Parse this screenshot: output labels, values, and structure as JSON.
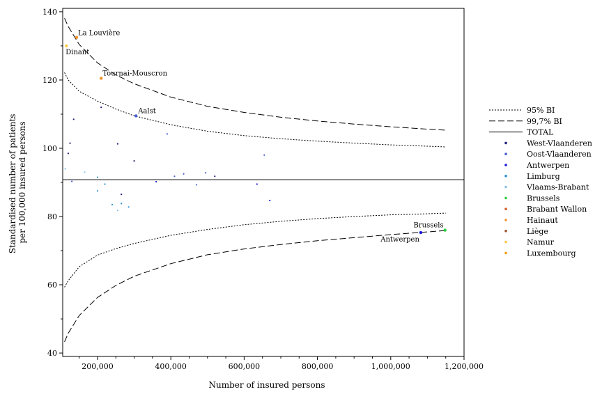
{
  "chart_data": {
    "type": "scatter",
    "title": "",
    "xlabel": "Number of insured persons",
    "ylabel_lines": [
      "Standardised number of patients",
      "per 100,000 insured persons"
    ],
    "xlim": [
      105000,
      1200000
    ],
    "ylim": [
      39,
      141
    ],
    "x_ticks": [
      200000,
      400000,
      600000,
      800000,
      1000000,
      1200000
    ],
    "x_tick_labels": [
      "200,000",
      "400,000",
      "600,000",
      "800,000",
      "1,000,000",
      "1,200,000"
    ],
    "y_ticks": [
      40,
      60,
      80,
      100,
      120,
      140
    ],
    "y_tick_labels": [
      "40",
      "60",
      "80",
      "100",
      "120",
      "140"
    ],
    "grid": false,
    "legend_position": "right",
    "total": 90.8,
    "reference_lines": [
      {
        "name": "95% BI",
        "style": "dotted",
        "upper": [
          [
            110000,
            122.2
          ],
          [
            120000,
            120.0
          ],
          [
            150000,
            116.7
          ],
          [
            200000,
            113.8
          ],
          [
            250000,
            111.5
          ],
          [
            300000,
            109.5
          ],
          [
            400000,
            106.9
          ],
          [
            500000,
            105.0
          ],
          [
            600000,
            103.7
          ],
          [
            700000,
            102.8
          ],
          [
            800000,
            102.1
          ],
          [
            900000,
            101.5
          ],
          [
            1000000,
            101.0
          ],
          [
            1100000,
            100.6
          ],
          [
            1150000,
            100.4
          ]
        ],
        "lower": [
          [
            110000,
            59.3
          ],
          [
            120000,
            61.2
          ],
          [
            150000,
            65.3
          ],
          [
            200000,
            68.7
          ],
          [
            250000,
            70.6
          ],
          [
            300000,
            72.1
          ],
          [
            400000,
            74.5
          ],
          [
            500000,
            76.2
          ],
          [
            600000,
            77.6
          ],
          [
            700000,
            78.6
          ],
          [
            800000,
            79.4
          ],
          [
            900000,
            80.0
          ],
          [
            1000000,
            80.5
          ],
          [
            1100000,
            80.8
          ],
          [
            1150000,
            81.0
          ]
        ]
      },
      {
        "name": "99,7% BI",
        "style": "dashed",
        "upper": [
          [
            110000,
            138.1
          ],
          [
            120000,
            135.7
          ],
          [
            150000,
            130.4
          ],
          [
            200000,
            125.0
          ],
          [
            250000,
            121.5
          ],
          [
            300000,
            118.9
          ],
          [
            400000,
            115.0
          ],
          [
            500000,
            112.3
          ],
          [
            600000,
            110.5
          ],
          [
            700000,
            109.1
          ],
          [
            800000,
            108.0
          ],
          [
            900000,
            107.1
          ],
          [
            1000000,
            106.3
          ],
          [
            1100000,
            105.6
          ],
          [
            1150000,
            105.3
          ]
        ],
        "lower": [
          [
            110000,
            43.3
          ],
          [
            120000,
            45.8
          ],
          [
            150000,
            51.0
          ],
          [
            200000,
            56.3
          ],
          [
            250000,
            59.8
          ],
          [
            300000,
            62.5
          ],
          [
            400000,
            66.2
          ],
          [
            500000,
            68.8
          ],
          [
            600000,
            70.5
          ],
          [
            700000,
            71.8
          ],
          [
            800000,
            72.9
          ],
          [
            900000,
            73.8
          ],
          [
            1000000,
            74.7
          ],
          [
            1100000,
            75.5
          ],
          [
            1150000,
            75.9
          ]
        ]
      }
    ],
    "series": [
      {
        "name": "West-Vlaanderen",
        "color": "#1f1f7a",
        "points": [
          [
            125000,
            101.5
          ],
          [
            135000,
            108.5
          ],
          [
            210000,
            112.0
          ],
          [
            255000,
            101.3
          ],
          [
            300000,
            96.3
          ],
          [
            520000,
            91.8
          ],
          [
            265000,
            86.5
          ],
          [
            120000,
            98.5
          ]
        ]
      },
      {
        "name": "Oost-Vlaanderen",
        "color": "#4a5fd0",
        "points": [
          [
            305000,
            109.5
          ],
          [
            390000,
            104.2
          ],
          [
            655000,
            98.0
          ],
          [
            410000,
            91.8
          ],
          [
            435000,
            92.5
          ],
          [
            495000,
            92.8
          ],
          [
            470000,
            89.3
          ],
          [
            130000,
            90.3
          ]
        ]
      },
      {
        "name": "Antwerpen",
        "color": "#1a1ad6",
        "points": [
          [
            1082000,
            75.3
          ],
          [
            635000,
            89.5
          ],
          [
            360000,
            90.2
          ],
          [
            670000,
            84.7
          ]
        ]
      },
      {
        "name": "Limburg",
        "color": "#2b8fd4",
        "points": [
          [
            200000,
            91.5
          ],
          [
            220000,
            89.5
          ],
          [
            240000,
            83.5
          ],
          [
            265000,
            83.8
          ],
          [
            285000,
            82.8
          ],
          [
            200000,
            87.5
          ]
        ]
      },
      {
        "name": "Vlaams-Brabant",
        "color": "#8ac4ec",
        "points": [
          [
            112000,
            94.0
          ],
          [
            165000,
            93.0
          ],
          [
            255000,
            81.8
          ]
        ]
      },
      {
        "name": "Brussels",
        "color": "#2ecc40",
        "points": [
          [
            1148000,
            76.0
          ]
        ]
      },
      {
        "name": "Brabant Wallon",
        "color": "#d4602a",
        "points": []
      },
      {
        "name": "Hainaut",
        "color": "#f0922c",
        "points": [
          [
            143000,
            132.5
          ],
          [
            210000,
            120.5
          ]
        ]
      },
      {
        "name": "Liège",
        "color": "#a0522d",
        "points": []
      },
      {
        "name": "Namur",
        "color": "#f7c948",
        "points": [
          [
            115000,
            130.0
          ]
        ]
      },
      {
        "name": "Luxembourg",
        "color": "#f39c12",
        "points": []
      }
    ],
    "annotations": [
      {
        "text": "La Louvière",
        "x": 143000,
        "y": 132.5,
        "anchor": "start",
        "dx": 2,
        "dy": -3
      },
      {
        "text": "Dinant",
        "x": 115000,
        "y": 130.0,
        "anchor": "start",
        "dx": -1,
        "dy": 12
      },
      {
        "text": "Tournai-Mouscron",
        "x": 210000,
        "y": 120.5,
        "anchor": "start",
        "dx": 2,
        "dy": -4
      },
      {
        "text": "Aalst",
        "x": 305000,
        "y": 109.5,
        "anchor": "start",
        "dx": 3,
        "dy": -4
      },
      {
        "text": "Brussels",
        "x": 1148000,
        "y": 76.0,
        "anchor": "end",
        "dx": -2,
        "dy": -4
      },
      {
        "text": "Antwerpen",
        "x": 1082000,
        "y": 75.3,
        "anchor": "end",
        "dx": -2,
        "dy": 13
      }
    ],
    "legend": [
      {
        "label": "95% BI",
        "kind": "line",
        "style": "dotted"
      },
      {
        "label": "99,7% BI",
        "kind": "line",
        "style": "dashed"
      },
      {
        "label": "TOTAL",
        "kind": "line",
        "style": "solid"
      },
      {
        "label": "West-Vlaanderen",
        "kind": "dot",
        "color": "#1f1f7a"
      },
      {
        "label": "Oost-Vlaanderen",
        "kind": "dot",
        "color": "#4a5fd0"
      },
      {
        "label": "Antwerpen",
        "kind": "dot",
        "color": "#1a1ad6"
      },
      {
        "label": "Limburg",
        "kind": "dot",
        "color": "#2b8fd4"
      },
      {
        "label": "Vlaams-Brabant",
        "kind": "dot",
        "color": "#8ac4ec"
      },
      {
        "label": "Brussels",
        "kind": "dot",
        "color": "#2ecc40"
      },
      {
        "label": "Brabant Wallon",
        "kind": "dot",
        "color": "#d4602a"
      },
      {
        "label": "Hainaut",
        "kind": "dot",
        "color": "#f0922c"
      },
      {
        "label": "Liège",
        "kind": "dot",
        "color": "#a0522d"
      },
      {
        "label": "Namur",
        "kind": "dot",
        "color": "#f7c948"
      },
      {
        "label": "Luxembourg",
        "kind": "dot",
        "color": "#f39c12"
      }
    ]
  }
}
